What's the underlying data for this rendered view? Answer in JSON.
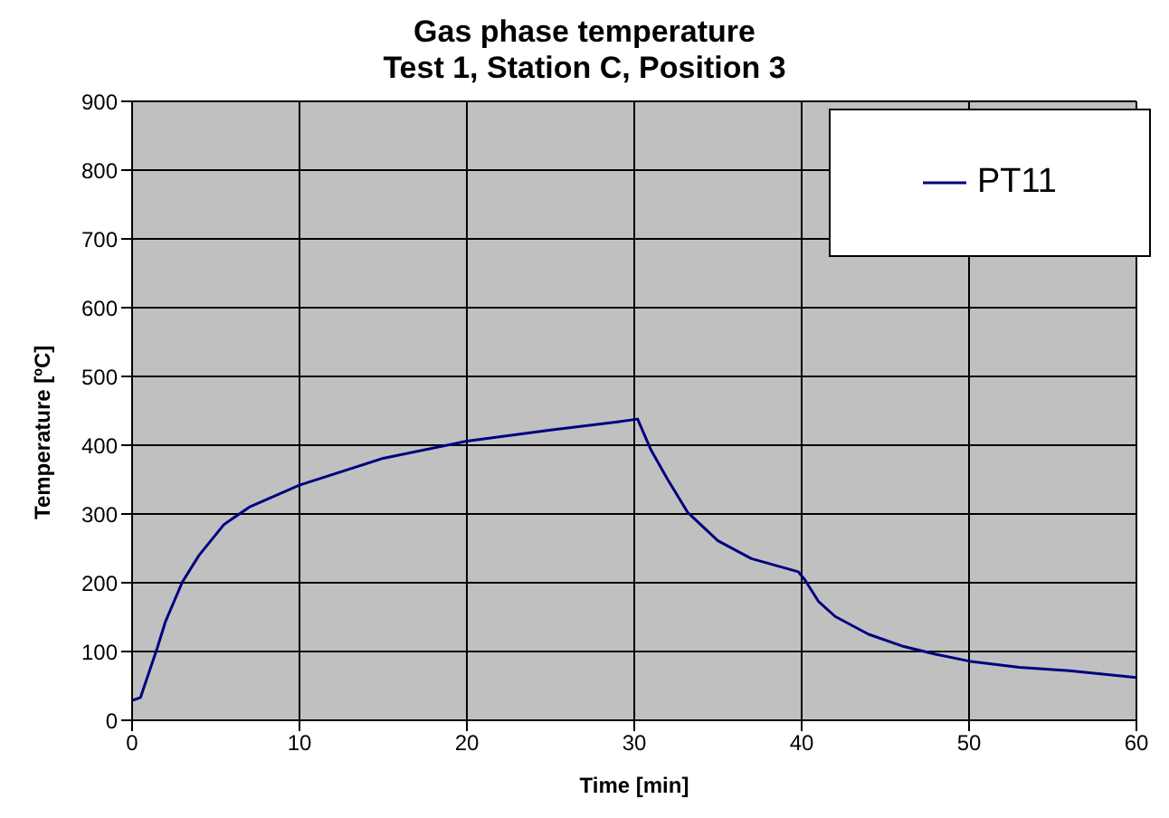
{
  "chart_data": {
    "type": "line",
    "title": "Gas phase temperature",
    "subtitle": "Test 1, Station C, Position 3",
    "xlabel": "Time [min]",
    "ylabel": "Temperature [ºC]",
    "x": [
      0,
      0.5,
      1.5,
      2,
      3,
      4,
      5.5,
      7,
      10,
      15,
      20,
      25,
      29,
      30.2,
      31,
      32,
      33.2,
      35,
      37,
      39.8,
      40.2,
      41,
      42,
      44,
      46,
      48,
      50,
      53,
      56,
      60
    ],
    "series": [
      {
        "name": "PT11",
        "color": "#000080",
        "values": [
          29,
          33,
          105,
          144,
          201,
          240,
          285,
          310,
          342,
          381,
          406,
          422,
          434,
          438,
          393,
          350,
          302,
          261,
          235,
          216,
          204,
          173,
          151,
          125,
          108,
          96,
          86,
          77,
          72,
          62
        ]
      }
    ],
    "xlim": [
      0,
      60
    ],
    "xticks": [
      0,
      10,
      20,
      30,
      40,
      50,
      60
    ],
    "ylim": [
      0,
      900
    ],
    "yticks": [
      0,
      100,
      200,
      300,
      400,
      500,
      600,
      700,
      800,
      900
    ],
    "grid": true,
    "legend": "top right",
    "marker": "none",
    "line_style": "solid"
  }
}
